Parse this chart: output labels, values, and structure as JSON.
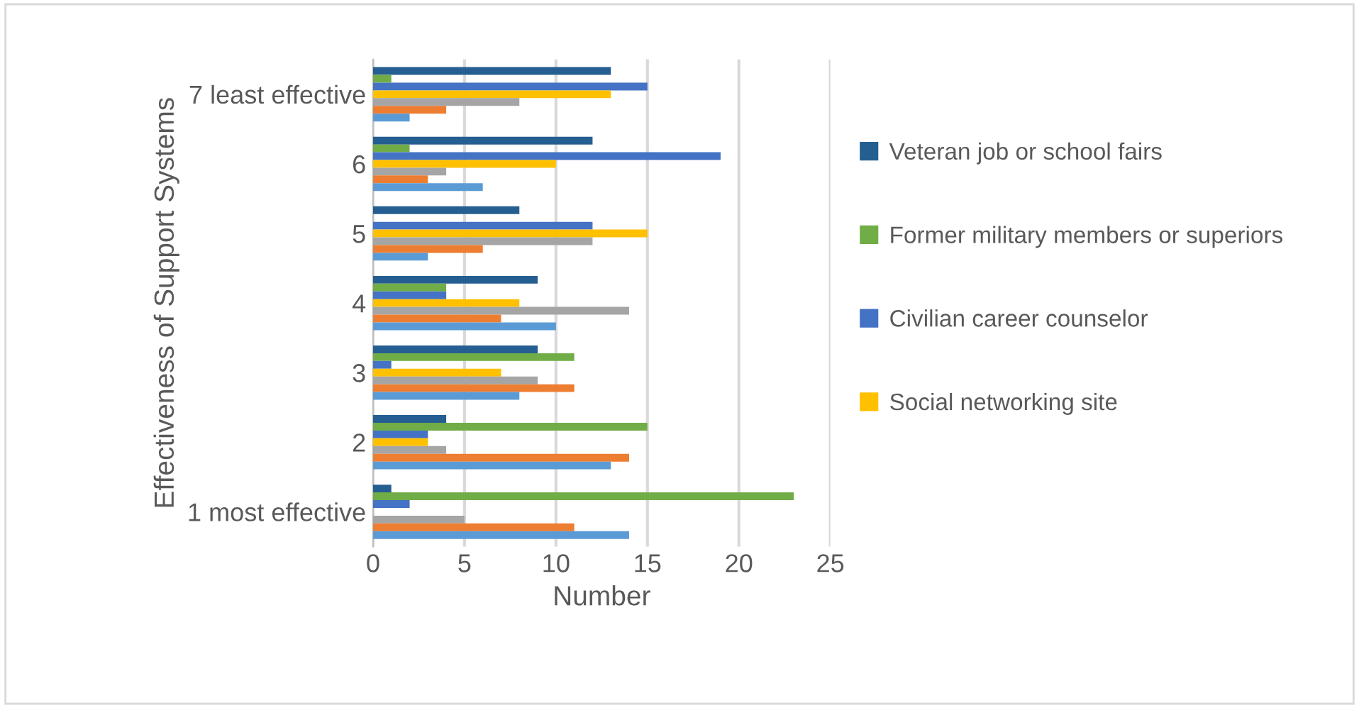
{
  "chart_data": {
    "type": "bar",
    "orientation": "horizontal",
    "xlabel": "Number",
    "ylabel": "Effectiveness of Support Systems",
    "categories": [
      "7 least effective",
      "6",
      "5",
      "4",
      "3",
      "2",
      "1 most effective"
    ],
    "series": [
      {
        "name": "Veteran job or school fairs",
        "color": "#255e91",
        "values": [
          13,
          12,
          8,
          9,
          9,
          4,
          1
        ]
      },
      {
        "name": "Former military members or superiors",
        "color": "#70ad47",
        "values": [
          1,
          2,
          0,
          4,
          11,
          15,
          23
        ]
      },
      {
        "name": "Civilian career counselor",
        "color": "#4472c4",
        "values": [
          15,
          19,
          12,
          4,
          1,
          3,
          2
        ]
      },
      {
        "name": "Social networking site",
        "color": "#ffc000",
        "values": [
          13,
          10,
          15,
          8,
          7,
          3,
          0
        ]
      },
      {
        "color": "#a5a5a5",
        "values": [
          8,
          4,
          12,
          14,
          9,
          4,
          5
        ]
      },
      {
        "color": "#ed7d31",
        "values": [
          4,
          3,
          6,
          7,
          11,
          14,
          11
        ]
      },
      {
        "color": "#5b9bd5",
        "values": [
          2,
          6,
          3,
          10,
          8,
          13,
          14
        ]
      }
    ],
    "xlim": [
      0,
      25
    ],
    "xticks": [
      0,
      5,
      10,
      15,
      20,
      25
    ],
    "grid": "x",
    "legend": "right"
  }
}
